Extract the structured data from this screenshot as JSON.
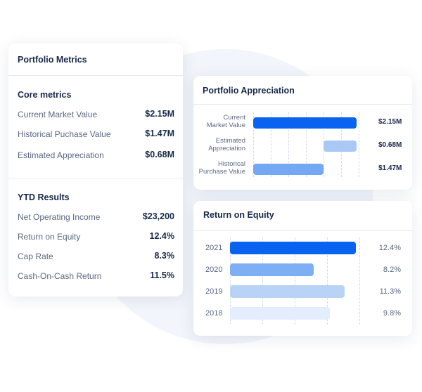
{
  "metrics": {
    "title": "Portfolio Metrics",
    "core": {
      "title": "Core metrics",
      "rows": [
        {
          "label": "Current Market Value",
          "value": "$2.15M"
        },
        {
          "label": "Historical Puchase Value",
          "value": "$1.47M"
        },
        {
          "label": "Estimated Appreciation",
          "value": "$0.68M"
        }
      ]
    },
    "ytd": {
      "title": "YTD Results",
      "rows": [
        {
          "label": "Net Operating Income",
          "value": "$23,200"
        },
        {
          "label": "Return on Equity",
          "value": "12.4%"
        },
        {
          "label": "Cap Rate",
          "value": "8.3%"
        },
        {
          "label": "Cash-On-Cash Return",
          "value": "11.5%"
        }
      ]
    }
  },
  "chart_data": [
    {
      "type": "bar",
      "title": "Portfolio Appreciation",
      "orientation": "horizontal",
      "categories": [
        "Current\nMarket Value",
        "Estimated\nAppreciation",
        "Historical\nPurchase Value"
      ],
      "values": [
        2.15,
        0.68,
        1.47
      ],
      "value_labels": [
        "$2.15M",
        "$0.68M",
        "$1.47M"
      ],
      "colors": [
        "#0a63f0",
        "#a9c8f6",
        "#74a8f2"
      ],
      "waterfall": true,
      "xlim": [
        0,
        2.2
      ],
      "grid": true
    },
    {
      "type": "bar",
      "title": "Return on Equity",
      "orientation": "horizontal",
      "categories": [
        "2021",
        "2020",
        "2019",
        "2018"
      ],
      "values": [
        12.4,
        8.2,
        11.3,
        9.8
      ],
      "value_labels": [
        "12.4%",
        "8.2%",
        "11.3%",
        "9.8%"
      ],
      "colors": [
        "#0a63f0",
        "#7eaef3",
        "#b9d3f7",
        "#e3edfb"
      ],
      "xlim": [
        0,
        12.8
      ],
      "grid": true
    }
  ]
}
